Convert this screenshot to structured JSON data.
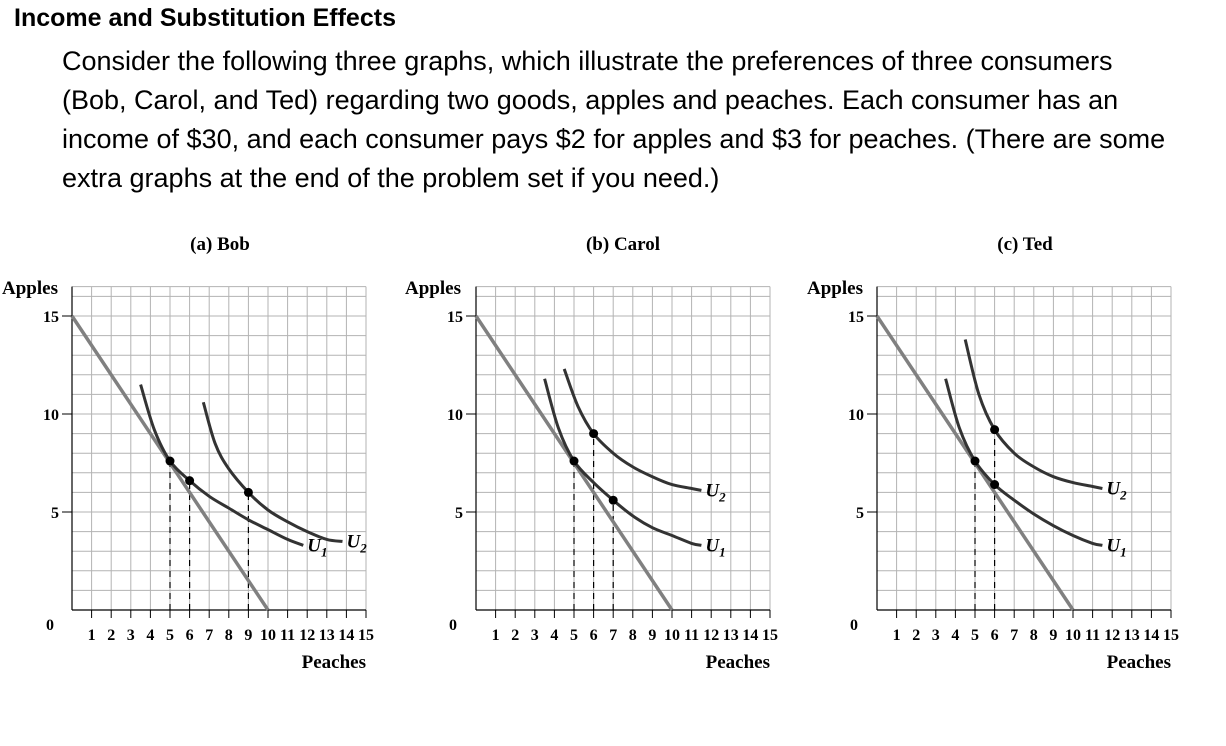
{
  "document": {
    "title": "Income and Substitution Effects",
    "body": "Consider the following three graphs, which illustrate the preferences of three consumers (Bob, Carol, and Ted) regarding two goods, apples and peaches. Each consumer has an income of $30, and each consumer pays $2 for apples and $3 for peaches. (There are some extra graphs at the end of the problem set if you need.)"
  },
  "chart_data": [
    {
      "type": "line",
      "title": "(a) Bob",
      "xlabel": "Peaches",
      "ylabel": "Apples",
      "xlim": [
        0,
        15
      ],
      "ylim": [
        0,
        15
      ],
      "xticks": [
        1,
        2,
        3,
        4,
        5,
        6,
        7,
        8,
        9,
        10,
        11,
        12,
        13,
        14,
        15
      ],
      "yticks": [
        0,
        5,
        10,
        15
      ],
      "grid": true,
      "budget_line": [
        [
          0,
          15
        ],
        [
          10,
          0
        ]
      ],
      "series": [
        {
          "name": "U1",
          "points": [
            [
              3.5,
              11.5
            ],
            [
              4.2,
              9.2
            ],
            [
              5,
              7.6
            ],
            [
              6,
              6.6
            ],
            [
              7,
              5.8
            ],
            [
              8,
              5.2
            ],
            [
              9,
              4.6
            ],
            [
              10,
              4.1
            ],
            [
              11,
              3.6
            ],
            [
              11.8,
              3.3
            ]
          ]
        },
        {
          "name": "U2",
          "points": [
            [
              6.7,
              10.6
            ],
            [
              7.3,
              8.5
            ],
            [
              8,
              7.2
            ],
            [
              9,
              6.0
            ],
            [
              10,
              5.1
            ],
            [
              11,
              4.5
            ],
            [
              12,
              4.0
            ],
            [
              13,
              3.6
            ],
            [
              13.8,
              3.5
            ]
          ]
        }
      ],
      "points": [
        [
          5,
          7.6
        ],
        [
          6,
          6.6
        ],
        [
          9,
          6.0
        ]
      ],
      "dashed_x": [
        5,
        6,
        9
      ]
    },
    {
      "type": "line",
      "title": "(b) Carol",
      "xlabel": "Peaches",
      "ylabel": "Apples",
      "xlim": [
        0,
        15
      ],
      "ylim": [
        0,
        15
      ],
      "xticks": [
        1,
        2,
        3,
        4,
        5,
        6,
        7,
        8,
        9,
        10,
        11,
        12,
        13,
        14,
        15
      ],
      "yticks": [
        0,
        5,
        10,
        15
      ],
      "grid": true,
      "budget_line": [
        [
          0,
          15
        ],
        [
          10,
          0
        ]
      ],
      "series": [
        {
          "name": "U1",
          "points": [
            [
              3.5,
              11.8
            ],
            [
              4.2,
              9.3
            ],
            [
              5,
              7.6
            ],
            [
              6,
              6.5
            ],
            [
              7,
              5.6
            ],
            [
              8,
              4.8
            ],
            [
              9,
              4.2
            ],
            [
              10,
              3.8
            ],
            [
              11,
              3.4
            ],
            [
              11.5,
              3.3
            ]
          ]
        },
        {
          "name": "U2",
          "points": [
            [
              4.5,
              12.3
            ],
            [
              5.2,
              10.4
            ],
            [
              6,
              9.0
            ],
            [
              7,
              8.0
            ],
            [
              8,
              7.3
            ],
            [
              9,
              6.8
            ],
            [
              10,
              6.4
            ],
            [
              11,
              6.2
            ],
            [
              11.5,
              6.1
            ]
          ]
        }
      ],
      "points": [
        [
          5,
          7.6
        ],
        [
          6,
          9.0
        ],
        [
          7,
          5.6
        ]
      ],
      "dashed_x": [
        5,
        6,
        7
      ]
    },
    {
      "type": "line",
      "title": "(c) Ted",
      "xlabel": "Peaches",
      "ylabel": "Apples",
      "xlim": [
        0,
        15
      ],
      "ylim": [
        0,
        15
      ],
      "xticks": [
        1,
        2,
        3,
        4,
        5,
        6,
        7,
        8,
        9,
        10,
        11,
        12,
        13,
        14,
        15
      ],
      "yticks": [
        0,
        5,
        10,
        15
      ],
      "grid": true,
      "budget_line": [
        [
          0,
          15
        ],
        [
          10,
          0
        ]
      ],
      "series": [
        {
          "name": "U1",
          "points": [
            [
              3.5,
              11.8
            ],
            [
              4.2,
              9.3
            ],
            [
              5,
              7.6
            ],
            [
              6,
              6.4
            ],
            [
              7,
              5.6
            ],
            [
              8,
              4.9
            ],
            [
              9,
              4.3
            ],
            [
              10,
              3.8
            ],
            [
              11,
              3.4
            ],
            [
              11.5,
              3.3
            ]
          ]
        },
        {
          "name": "U2",
          "points": [
            [
              4.5,
              13.8
            ],
            [
              5.2,
              11.0
            ],
            [
              6,
              9.2
            ],
            [
              7,
              8.0
            ],
            [
              8,
              7.3
            ],
            [
              9,
              6.8
            ],
            [
              10,
              6.5
            ],
            [
              11,
              6.3
            ],
            [
              11.5,
              6.2
            ]
          ]
        }
      ],
      "points": [
        [
          5,
          7.6
        ],
        [
          6,
          9.2
        ],
        [
          6,
          6.4
        ]
      ],
      "dashed_x": [
        5,
        6
      ]
    }
  ],
  "colors": {
    "grid": "#b3b3b3",
    "budget": "#808080",
    "curve": "#333333",
    "axis": "#000000"
  }
}
